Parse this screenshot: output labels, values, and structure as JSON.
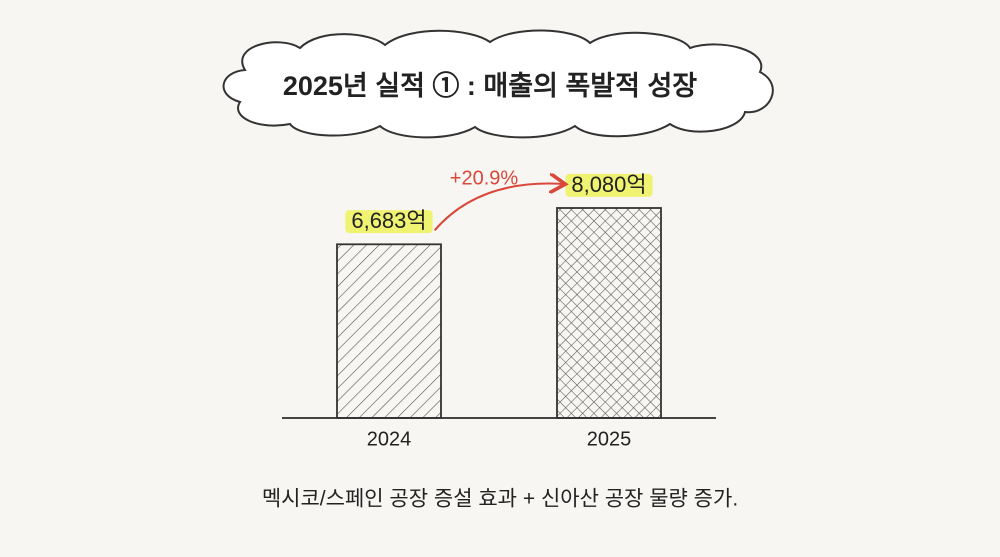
{
  "chart_data": {
    "type": "bar",
    "title": "2025년 실적 ① : 매출의 폭발적 성장",
    "categories": [
      "2024",
      "2025"
    ],
    "values": [
      6683,
      8080
    ],
    "value_labels": [
      "6,683억",
      "8,080억"
    ],
    "annotation": "+20.9%",
    "caption": "멕시코/스페인 공장 증설 효과 + 신아산 공장 물량 증가."
  }
}
